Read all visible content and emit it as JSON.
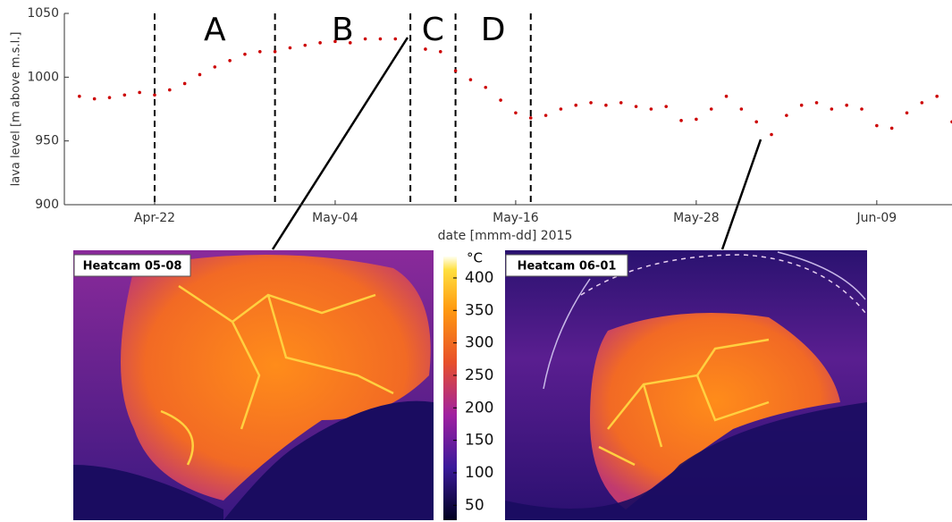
{
  "chart_data": {
    "type": "scatter",
    "xlabel": "date [mmm-dd] 2015",
    "ylabel": "lava level [m above m.s.l.]",
    "x": [
      "2015-04-17",
      "2015-04-18",
      "2015-04-19",
      "2015-04-20",
      "2015-04-21",
      "2015-04-22",
      "2015-04-23",
      "2015-04-24",
      "2015-04-25",
      "2015-04-26",
      "2015-04-27",
      "2015-04-28",
      "2015-04-29",
      "2015-04-30",
      "2015-05-01",
      "2015-05-02",
      "2015-05-03",
      "2015-05-04",
      "2015-05-05",
      "2015-05-06",
      "2015-05-07",
      "2015-05-08",
      "2015-05-09",
      "2015-05-10",
      "2015-05-11",
      "2015-05-12",
      "2015-05-13",
      "2015-05-14",
      "2015-05-15",
      "2015-05-16",
      "2015-05-17",
      "2015-05-18",
      "2015-05-19",
      "2015-05-20",
      "2015-05-21",
      "2015-05-22",
      "2015-05-23",
      "2015-05-24",
      "2015-05-25",
      "2015-05-26",
      "2015-05-27",
      "2015-05-28",
      "2015-05-29",
      "2015-05-30",
      "2015-05-31",
      "2015-06-01",
      "2015-06-02",
      "2015-06-03",
      "2015-06-04",
      "2015-06-05",
      "2015-06-06",
      "2015-06-07",
      "2015-06-08",
      "2015-06-09",
      "2015-06-10",
      "2015-06-11",
      "2015-06-12",
      "2015-06-13",
      "2015-06-14"
    ],
    "series": [
      {
        "color": "#cc0000",
        "values": [
          985,
          983,
          984,
          986,
          988,
          986,
          990,
          995,
          1002,
          1008,
          1013,
          1018,
          1020,
          1020,
          1023,
          1025,
          1027,
          1028,
          1027,
          1030,
          1030,
          1030,
          null,
          1022,
          1020,
          1005,
          998,
          992,
          982,
          972,
          968,
          970,
          975,
          978,
          980,
          978,
          980,
          977,
          975,
          977,
          966,
          967,
          975,
          985,
          975,
          965,
          955,
          970,
          978,
          980,
          975,
          978,
          975,
          962,
          960,
          972,
          980,
          985,
          965
        ]
      }
    ],
    "xlim": [
      "2015-04-16",
      "2015-06-14"
    ],
    "xticks": [
      {
        "value": "2015-04-22",
        "label": "Apr-22"
      },
      {
        "value": "2015-05-04",
        "label": "May-04"
      },
      {
        "value": "2015-05-16",
        "label": "May-16"
      },
      {
        "value": "2015-05-28",
        "label": "May-28"
      },
      {
        "value": "2015-06-09",
        "label": "Jun-09"
      }
    ],
    "ylim": [
      900,
      1050
    ],
    "yticks": [
      900,
      950,
      1000,
      1050
    ],
    "phase_boundaries": [
      "2015-04-22",
      "2015-04-30",
      "2015-05-09",
      "2015-05-12",
      "2015-05-17"
    ],
    "phases": [
      "A",
      "B",
      "C",
      "D"
    ]
  },
  "colorbar": {
    "label": "°C",
    "lim": [
      27,
      433
    ],
    "ticks": [
      50,
      100,
      150,
      200,
      250,
      300,
      350,
      400
    ]
  },
  "images": [
    {
      "label": "Heatcam 05-08"
    },
    {
      "label": "Heatcam 06-01"
    }
  ]
}
